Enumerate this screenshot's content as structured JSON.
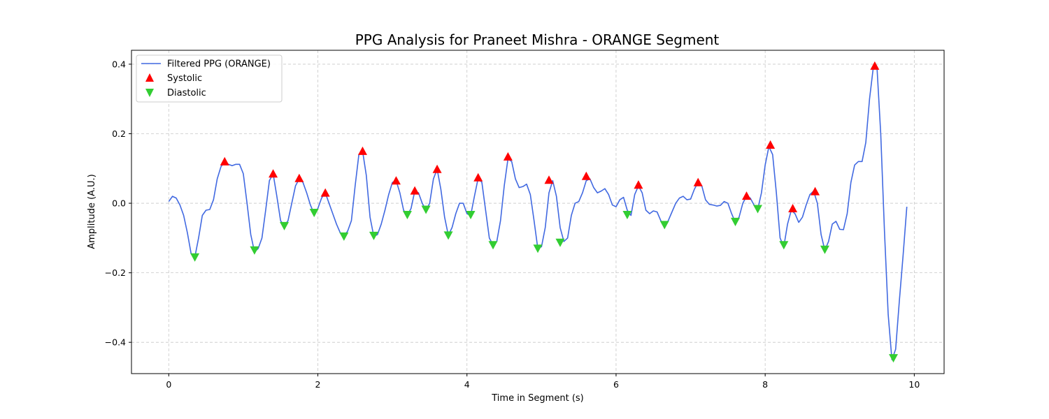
{
  "chart_data": {
    "type": "line",
    "title": "PPG Analysis for Praneet Mishra - ORANGE Segment",
    "xlabel": "Time in Segment (s)",
    "ylabel": "Amplitude (A.U.)",
    "xlim": [
      -0.5,
      10.4
    ],
    "ylim": [
      -0.49,
      0.44
    ],
    "xticks": [
      0,
      2,
      4,
      6,
      8,
      10
    ],
    "xtick_labels": [
      "0",
      "2",
      "4",
      "6",
      "8",
      "10"
    ],
    "yticks": [
      -0.4,
      -0.2,
      0.0,
      0.2,
      0.4
    ],
    "ytick_labels": [
      "−0.4",
      "−0.2",
      "0.0",
      "0.2",
      "0.4"
    ],
    "grid": true,
    "legend_position": "top-left",
    "series": [
      {
        "name": "Filtered PPG (ORANGE)",
        "kind": "line",
        "color": "#4169e1",
        "points": [
          [
            0.0,
            0.005
          ],
          [
            0.05,
            0.02
          ],
          [
            0.1,
            0.015
          ],
          [
            0.15,
            -0.005
          ],
          [
            0.2,
            -0.035
          ],
          [
            0.25,
            -0.085
          ],
          [
            0.3,
            -0.145
          ],
          [
            0.35,
            -0.155
          ],
          [
            0.4,
            -0.1
          ],
          [
            0.45,
            -0.035
          ],
          [
            0.5,
            -0.02
          ],
          [
            0.55,
            -0.018
          ],
          [
            0.6,
            0.01
          ],
          [
            0.65,
            0.07
          ],
          [
            0.7,
            0.105
          ],
          [
            0.75,
            0.12
          ],
          [
            0.8,
            0.112
          ],
          [
            0.85,
            0.108
          ],
          [
            0.9,
            0.112
          ],
          [
            0.95,
            0.112
          ],
          [
            1.0,
            0.085
          ],
          [
            1.05,
            0.0
          ],
          [
            1.1,
            -0.09
          ],
          [
            1.15,
            -0.14
          ],
          [
            1.2,
            -0.13
          ],
          [
            1.25,
            -0.1
          ],
          [
            1.3,
            -0.02
          ],
          [
            1.35,
            0.065
          ],
          [
            1.4,
            0.085
          ],
          [
            1.45,
            0.02
          ],
          [
            1.5,
            -0.05
          ],
          [
            1.55,
            -0.065
          ],
          [
            1.6,
            -0.05
          ],
          [
            1.65,
            0.0
          ],
          [
            1.7,
            0.05
          ],
          [
            1.75,
            0.07
          ],
          [
            1.8,
            0.06
          ],
          [
            1.85,
            0.03
          ],
          [
            1.9,
            -0.005
          ],
          [
            1.95,
            -0.03
          ],
          [
            2.0,
            -0.015
          ],
          [
            2.05,
            0.015
          ],
          [
            2.1,
            0.03
          ],
          [
            2.15,
            0.0
          ],
          [
            2.2,
            -0.03
          ],
          [
            2.25,
            -0.06
          ],
          [
            2.3,
            -0.085
          ],
          [
            2.35,
            -0.095
          ],
          [
            2.4,
            -0.08
          ],
          [
            2.45,
            -0.05
          ],
          [
            2.5,
            0.05
          ],
          [
            2.55,
            0.14
          ],
          [
            2.6,
            0.15
          ],
          [
            2.65,
            0.08
          ],
          [
            2.7,
            -0.04
          ],
          [
            2.75,
            -0.095
          ],
          [
            2.8,
            -0.09
          ],
          [
            2.85,
            -0.06
          ],
          [
            2.9,
            -0.02
          ],
          [
            2.95,
            0.025
          ],
          [
            3.0,
            0.06
          ],
          [
            3.05,
            0.065
          ],
          [
            3.1,
            0.03
          ],
          [
            3.15,
            -0.02
          ],
          [
            3.2,
            -0.035
          ],
          [
            3.25,
            -0.015
          ],
          [
            3.3,
            0.035
          ],
          [
            3.35,
            0.03
          ],
          [
            3.4,
            0.0
          ],
          [
            3.45,
            -0.02
          ],
          [
            3.5,
            0.0
          ],
          [
            3.55,
            0.07
          ],
          [
            3.6,
            0.098
          ],
          [
            3.65,
            0.04
          ],
          [
            3.7,
            -0.04
          ],
          [
            3.75,
            -0.092
          ],
          [
            3.8,
            -0.07
          ],
          [
            3.85,
            -0.03
          ],
          [
            3.9,
            0.0
          ],
          [
            3.95,
            0.0
          ],
          [
            4.0,
            -0.03
          ],
          [
            4.05,
            -0.035
          ],
          [
            4.1,
            0.02
          ],
          [
            4.15,
            0.072
          ],
          [
            4.2,
            0.06
          ],
          [
            4.25,
            -0.02
          ],
          [
            4.3,
            -0.1
          ],
          [
            4.35,
            -0.12
          ],
          [
            4.4,
            -0.11
          ],
          [
            4.45,
            -0.05
          ],
          [
            4.5,
            0.05
          ],
          [
            4.55,
            0.128
          ],
          [
            4.6,
            0.12
          ],
          [
            4.65,
            0.07
          ],
          [
            4.7,
            0.045
          ],
          [
            4.75,
            0.048
          ],
          [
            4.8,
            0.055
          ],
          [
            4.85,
            0.025
          ],
          [
            4.9,
            -0.05
          ],
          [
            4.95,
            -0.13
          ],
          [
            5.0,
            -0.125
          ],
          [
            5.05,
            -0.07
          ],
          [
            5.1,
            0.03
          ],
          [
            5.15,
            0.065
          ],
          [
            5.2,
            0.02
          ],
          [
            5.25,
            -0.07
          ],
          [
            5.3,
            -0.11
          ],
          [
            5.35,
            -0.1
          ],
          [
            5.4,
            -0.035
          ],
          [
            5.45,
            0.0
          ],
          [
            5.5,
            0.005
          ],
          [
            5.55,
            0.03
          ],
          [
            5.6,
            0.065
          ],
          [
            5.65,
            0.07
          ],
          [
            5.7,
            0.045
          ],
          [
            5.75,
            0.03
          ],
          [
            5.8,
            0.035
          ],
          [
            5.85,
            0.042
          ],
          [
            5.9,
            0.025
          ],
          [
            5.95,
            -0.005
          ],
          [
            6.0,
            -0.01
          ],
          [
            6.05,
            0.01
          ],
          [
            6.1,
            0.017
          ],
          [
            6.15,
            -0.02
          ],
          [
            6.2,
            -0.035
          ],
          [
            6.25,
            0.025
          ],
          [
            6.3,
            0.05
          ],
          [
            6.35,
            0.03
          ],
          [
            6.4,
            -0.02
          ],
          [
            6.45,
            -0.03
          ],
          [
            6.5,
            -0.022
          ],
          [
            6.55,
            -0.025
          ],
          [
            6.6,
            -0.05
          ],
          [
            6.65,
            -0.065
          ],
          [
            6.7,
            -0.05
          ],
          [
            6.75,
            -0.025
          ],
          [
            6.8,
            0.0
          ],
          [
            6.85,
            0.015
          ],
          [
            6.9,
            0.02
          ],
          [
            6.95,
            0.01
          ],
          [
            7.0,
            0.012
          ],
          [
            7.05,
            0.04
          ],
          [
            7.1,
            0.06
          ],
          [
            7.15,
            0.05
          ],
          [
            7.2,
            0.01
          ],
          [
            7.25,
            -0.003
          ],
          [
            7.3,
            -0.005
          ],
          [
            7.35,
            -0.008
          ],
          [
            7.4,
            -0.006
          ],
          [
            7.45,
            0.005
          ],
          [
            7.5,
            0.0
          ],
          [
            7.55,
            -0.03
          ],
          [
            7.6,
            -0.055
          ],
          [
            7.65,
            -0.04
          ],
          [
            7.7,
            0.0
          ],
          [
            7.75,
            0.02
          ],
          [
            7.8,
            0.015
          ],
          [
            7.85,
            -0.005
          ],
          [
            7.9,
            -0.018
          ],
          [
            7.95,
            0.03
          ],
          [
            8.0,
            0.11
          ],
          [
            8.05,
            0.163
          ],
          [
            8.1,
            0.14
          ],
          [
            8.15,
            0.03
          ],
          [
            8.2,
            -0.1
          ],
          [
            8.25,
            -0.125
          ],
          [
            8.3,
            -0.06
          ],
          [
            8.35,
            -0.02
          ],
          [
            8.4,
            -0.03
          ],
          [
            8.45,
            -0.055
          ],
          [
            8.5,
            -0.04
          ],
          [
            8.55,
            -0.005
          ],
          [
            8.6,
            0.025
          ],
          [
            8.65,
            0.035
          ],
          [
            8.7,
            0.0
          ],
          [
            8.75,
            -0.09
          ],
          [
            8.8,
            -0.135
          ],
          [
            8.85,
            -0.11
          ],
          [
            8.9,
            -0.06
          ],
          [
            8.95,
            -0.052
          ],
          [
            9.0,
            -0.075
          ],
          [
            9.05,
            -0.076
          ],
          [
            9.1,
            -0.03
          ],
          [
            9.15,
            0.06
          ],
          [
            9.2,
            0.11
          ],
          [
            9.25,
            0.12
          ],
          [
            9.3,
            0.12
          ],
          [
            9.35,
            0.175
          ],
          [
            9.4,
            0.3
          ],
          [
            9.45,
            0.39
          ],
          [
            9.5,
            0.39
          ],
          [
            9.55,
            0.2
          ],
          [
            9.6,
            -0.08
          ],
          [
            9.65,
            -0.32
          ],
          [
            9.7,
            -0.45
          ],
          [
            9.75,
            -0.42
          ],
          [
            9.8,
            -0.28
          ],
          [
            9.85,
            -0.15
          ],
          [
            9.9,
            -0.01
          ]
        ]
      },
      {
        "name": "Systolic",
        "kind": "scatter",
        "marker": "triangle-up",
        "color": "#ff0000",
        "points": [
          [
            0.75,
            0.12
          ],
          [
            1.4,
            0.085
          ],
          [
            1.75,
            0.072
          ],
          [
            2.1,
            0.03
          ],
          [
            2.6,
            0.15
          ],
          [
            3.05,
            0.065
          ],
          [
            3.3,
            0.036
          ],
          [
            3.6,
            0.098
          ],
          [
            4.15,
            0.074
          ],
          [
            4.55,
            0.134
          ],
          [
            5.1,
            0.067
          ],
          [
            5.6,
            0.078
          ],
          [
            6.3,
            0.053
          ],
          [
            7.1,
            0.06
          ],
          [
            7.75,
            0.021
          ],
          [
            8.07,
            0.168
          ],
          [
            8.37,
            -0.015
          ],
          [
            8.67,
            0.034
          ],
          [
            9.47,
            0.395
          ]
        ]
      },
      {
        "name": "Diastolic",
        "kind": "scatter",
        "marker": "triangle-down",
        "color": "#32cd32",
        "points": [
          [
            0.35,
            -0.155
          ],
          [
            1.15,
            -0.135
          ],
          [
            1.55,
            -0.065
          ],
          [
            1.95,
            -0.027
          ],
          [
            2.35,
            -0.095
          ],
          [
            2.75,
            -0.093
          ],
          [
            3.2,
            -0.033
          ],
          [
            3.45,
            -0.018
          ],
          [
            3.75,
            -0.092
          ],
          [
            4.05,
            -0.033
          ],
          [
            4.35,
            -0.12
          ],
          [
            4.95,
            -0.13
          ],
          [
            5.25,
            -0.113
          ],
          [
            6.15,
            -0.033
          ],
          [
            6.65,
            -0.062
          ],
          [
            7.6,
            -0.053
          ],
          [
            7.9,
            -0.016
          ],
          [
            8.25,
            -0.12
          ],
          [
            8.8,
            -0.133
          ],
          [
            9.72,
            -0.445
          ]
        ]
      }
    ]
  }
}
